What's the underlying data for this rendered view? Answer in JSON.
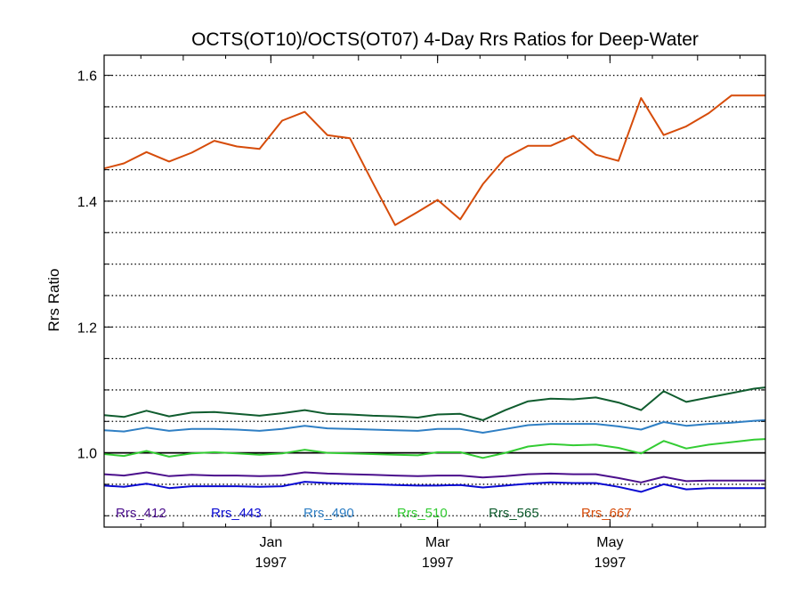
{
  "chart_data": {
    "type": "line",
    "title": "OCTS(OT10)/OCTS(OT07) 4-Day Rrs Ratios for Deep-Water",
    "xlabel": "",
    "ylabel": "Rrs Ratio",
    "xlim": [
      "1996-11-03",
      "1997-06-25"
    ],
    "ylim": [
      0.882,
      1.632
    ],
    "grid": true,
    "legend": "bottom inside, horizontal",
    "x_ticks": [
      {
        "date": "1997-01-01",
        "month": "Jan",
        "year": "1997"
      },
      {
        "date": "1997-03-01",
        "month": "Mar",
        "year": "1997"
      },
      {
        "date": "1997-05-01",
        "month": "May",
        "year": "1997"
      }
    ],
    "y_ticks": [
      "1.0",
      "1.2",
      "1.4",
      "1.6"
    ],
    "y_minor_ticks": [
      0.9,
      0.95,
      1.05,
      1.1,
      1.15,
      1.25,
      1.3,
      1.35,
      1.45,
      1.5,
      1.55
    ],
    "reference_line": 1.0,
    "x": [
      "1996-11-03",
      "1996-11-10",
      "1996-11-18",
      "1996-11-26",
      "1996-12-04",
      "1996-12-12",
      "1996-12-20",
      "1996-12-28",
      "1997-01-05",
      "1997-01-13",
      "1997-01-21",
      "1997-01-29",
      "1997-02-06",
      "1997-02-14",
      "1997-02-22",
      "1997-03-01",
      "1997-03-09",
      "1997-03-17",
      "1997-03-25",
      "1997-04-02",
      "1997-04-10",
      "1997-04-18",
      "1997-04-26",
      "1997-05-04",
      "1997-05-12",
      "1997-05-20",
      "1997-05-28",
      "1997-06-05",
      "1997-06-13",
      "1997-06-21",
      "1997-06-25"
    ],
    "series": [
      {
        "name": "Rrs_412",
        "color": "#4b0f8c",
        "values": [
          0.966,
          0.964,
          0.969,
          0.963,
          0.965,
          0.964,
          0.964,
          0.963,
          0.964,
          0.969,
          0.967,
          0.966,
          0.965,
          0.964,
          0.963,
          0.964,
          0.964,
          0.961,
          0.963,
          0.966,
          0.967,
          0.966,
          0.966,
          0.96,
          0.953,
          0.962,
          0.955,
          0.956,
          0.956,
          0.956,
          0.956
        ]
      },
      {
        "name": "Rrs_443",
        "color": "#0a0ad2",
        "values": [
          0.948,
          0.946,
          0.951,
          0.944,
          0.947,
          0.947,
          0.947,
          0.946,
          0.947,
          0.954,
          0.952,
          0.951,
          0.95,
          0.949,
          0.948,
          0.948,
          0.949,
          0.945,
          0.948,
          0.951,
          0.953,
          0.952,
          0.952,
          0.946,
          0.938,
          0.95,
          0.942,
          0.944,
          0.944,
          0.944,
          0.944
        ]
      },
      {
        "name": "Rrs_490",
        "color": "#2f7fc4",
        "values": [
          1.036,
          1.034,
          1.04,
          1.035,
          1.038,
          1.038,
          1.037,
          1.035,
          1.038,
          1.043,
          1.039,
          1.038,
          1.037,
          1.036,
          1.035,
          1.038,
          1.038,
          1.032,
          1.038,
          1.044,
          1.046,
          1.046,
          1.046,
          1.042,
          1.037,
          1.049,
          1.043,
          1.046,
          1.048,
          1.051,
          1.052
        ]
      },
      {
        "name": "Rrs_510",
        "color": "#33cc33",
        "values": [
          0.998,
          0.995,
          1.003,
          0.994,
          0.999,
          1.001,
          0.999,
          0.997,
          0.999,
          1.005,
          1.0,
          0.999,
          0.998,
          0.997,
          0.996,
          1.001,
          1.001,
          0.992,
          1.0,
          1.01,
          1.014,
          1.012,
          1.013,
          1.008,
          0.999,
          1.019,
          1.007,
          1.013,
          1.017,
          1.021,
          1.022
        ]
      },
      {
        "name": "Rrs_565",
        "color": "#0f5c2e",
        "values": [
          1.06,
          1.057,
          1.067,
          1.058,
          1.064,
          1.065,
          1.062,
          1.059,
          1.063,
          1.068,
          1.062,
          1.061,
          1.059,
          1.058,
          1.056,
          1.061,
          1.062,
          1.052,
          1.068,
          1.082,
          1.086,
          1.085,
          1.088,
          1.08,
          1.068,
          1.098,
          1.081,
          1.088,
          1.095,
          1.102,
          1.104
        ]
      },
      {
        "name": "Rrs_667",
        "color": "#d64c0a",
        "values": [
          1.452,
          1.46,
          1.478,
          1.463,
          1.477,
          1.496,
          1.487,
          1.483,
          1.528,
          1.542,
          1.505,
          1.5,
          1.43,
          1.362,
          1.383,
          1.402,
          1.371,
          1.427,
          1.469,
          1.488,
          1.488,
          1.504,
          1.474,
          1.464,
          1.564,
          1.505,
          1.519,
          1.54,
          1.568,
          1.568,
          1.568
        ]
      }
    ]
  }
}
